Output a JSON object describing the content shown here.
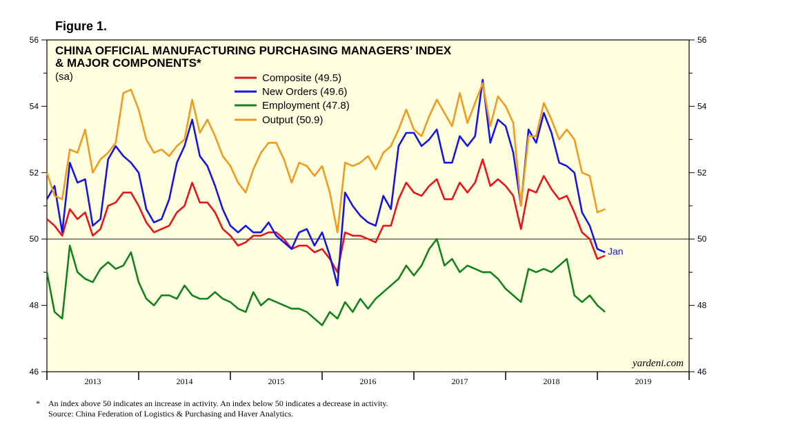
{
  "figure_label": "Figure 1.",
  "footnotes": {
    "star": "*",
    "note": "An index above 50 indicates an increase in activity. An index below 50 indicates a decrease in activity.",
    "source": "Source: China Federation of Logistics & Purchasing and Haver Analytics."
  },
  "chart_data": {
    "type": "line",
    "title": "CHINA OFFICIAL MANUFACTURING PURCHASING MANAGERS’ INDEX",
    "title_line2": "& MAJOR COMPONENTS*",
    "subtitle": "(sa)",
    "credit": "yardeni.com",
    "end_annotation": "Jan",
    "reference_line": 50,
    "ylim": [
      46,
      56
    ],
    "y_ticks": [
      46,
      48,
      50,
      52,
      54,
      56
    ],
    "y_tick_labels": [
      "46",
      "48",
      "50",
      "52",
      "54",
      "56"
    ],
    "x_start": 2012.5,
    "x_end": 2019.5,
    "x_tick_labels": [
      "2013",
      "2014",
      "2015",
      "2016",
      "2017",
      "2018",
      "2019"
    ],
    "x_tick_positions": [
      2013.0,
      2014.0,
      2015.0,
      2016.0,
      2017.0,
      2018.0,
      2019.0
    ],
    "series": [
      {
        "name": "Composite",
        "legend": "Composite (49.5)",
        "color": "#e8141a",
        "start": 2012.5,
        "step": 0.08333333,
        "values": [
          50.6,
          50.4,
          50.1,
          50.9,
          50.6,
          50.8,
          50.1,
          50.3,
          51.0,
          51.1,
          51.4,
          51.4,
          51.0,
          50.5,
          50.2,
          50.3,
          50.4,
          50.8,
          51.0,
          51.7,
          51.1,
          51.1,
          50.8,
          50.3,
          50.1,
          49.8,
          49.9,
          50.1,
          50.1,
          50.2,
          50.2,
          50.0,
          49.7,
          49.8,
          49.8,
          49.6,
          49.7,
          49.4,
          49.0,
          50.2,
          50.1,
          50.1,
          50.0,
          49.9,
          50.4,
          50.4,
          51.2,
          51.7,
          51.4,
          51.3,
          51.6,
          51.8,
          51.2,
          51.2,
          51.7,
          51.4,
          51.7,
          52.4,
          51.6,
          51.8,
          51.6,
          51.3,
          50.3,
          51.5,
          51.4,
          51.9,
          51.5,
          51.2,
          51.3,
          50.8,
          50.2,
          50.0,
          49.4,
          49.5
        ]
      },
      {
        "name": "New Orders",
        "legend": "New Orders (49.6)",
        "color": "#1414e6",
        "start": 2012.5,
        "step": 0.08333333,
        "values": [
          51.2,
          51.6,
          50.2,
          52.3,
          51.7,
          51.8,
          50.4,
          50.6,
          52.4,
          52.8,
          52.5,
          52.3,
          52.0,
          50.9,
          50.5,
          50.6,
          51.2,
          52.3,
          52.8,
          53.6,
          52.5,
          52.2,
          51.6,
          50.9,
          50.4,
          50.2,
          50.4,
          50.2,
          50.2,
          50.5,
          50.1,
          49.9,
          49.7,
          50.2,
          50.3,
          49.8,
          50.2,
          49.5,
          48.6,
          51.4,
          51.0,
          50.7,
          50.5,
          50.4,
          51.3,
          50.9,
          52.8,
          53.2,
          53.2,
          52.8,
          53.0,
          53.3,
          52.3,
          52.3,
          53.1,
          52.8,
          53.1,
          54.8,
          52.9,
          53.6,
          53.4,
          52.6,
          51.0,
          53.3,
          52.9,
          53.8,
          53.2,
          52.3,
          52.2,
          52.0,
          50.8,
          50.4,
          49.7,
          49.6
        ]
      },
      {
        "name": "Employment",
        "legend": "Employment (47.8)",
        "color": "#12821e",
        "start": 2012.5,
        "step": 0.08333333,
        "values": [
          49.0,
          47.8,
          47.6,
          49.8,
          49.0,
          48.8,
          48.7,
          49.1,
          49.3,
          49.1,
          49.2,
          49.6,
          48.7,
          48.2,
          48.0,
          48.3,
          48.3,
          48.2,
          48.6,
          48.3,
          48.2,
          48.2,
          48.4,
          48.2,
          48.1,
          47.9,
          47.8,
          48.4,
          48.0,
          48.2,
          48.1,
          48.0,
          47.9,
          47.9,
          47.8,
          47.6,
          47.4,
          47.8,
          47.6,
          48.1,
          47.8,
          48.2,
          47.9,
          48.2,
          48.4,
          48.6,
          48.8,
          49.2,
          48.9,
          49.2,
          49.7,
          50.0,
          49.2,
          49.4,
          49.0,
          49.2,
          49.1,
          49.0,
          49.0,
          48.8,
          48.5,
          48.3,
          48.1,
          49.1,
          49.0,
          49.1,
          49.0,
          49.2,
          49.4,
          48.3,
          48.1,
          48.3,
          48.0,
          47.8
        ]
      },
      {
        "name": "Output",
        "legend": "Output (50.9)",
        "color": "#f09a1e",
        "start": 2012.5,
        "step": 0.08333333,
        "values": [
          52.0,
          51.3,
          51.2,
          52.7,
          52.6,
          53.3,
          52.0,
          52.4,
          52.6,
          52.9,
          54.4,
          54.5,
          53.9,
          53.0,
          52.6,
          52.7,
          52.5,
          52.8,
          53.0,
          54.2,
          53.2,
          53.6,
          53.1,
          52.5,
          52.2,
          51.7,
          51.4,
          52.1,
          52.6,
          52.9,
          52.9,
          52.4,
          51.7,
          52.3,
          52.2,
          51.9,
          52.2,
          51.4,
          50.2,
          52.3,
          52.2,
          52.3,
          52.5,
          52.1,
          52.6,
          52.8,
          53.3,
          53.9,
          53.3,
          53.1,
          53.7,
          54.2,
          53.8,
          53.4,
          54.4,
          53.5,
          54.1,
          54.7,
          53.4,
          54.3,
          54.0,
          53.5,
          51.0,
          53.1,
          53.1,
          54.1,
          53.6,
          53.0,
          53.3,
          53.0,
          52.0,
          51.9,
          50.8,
          50.9
        ]
      }
    ]
  }
}
